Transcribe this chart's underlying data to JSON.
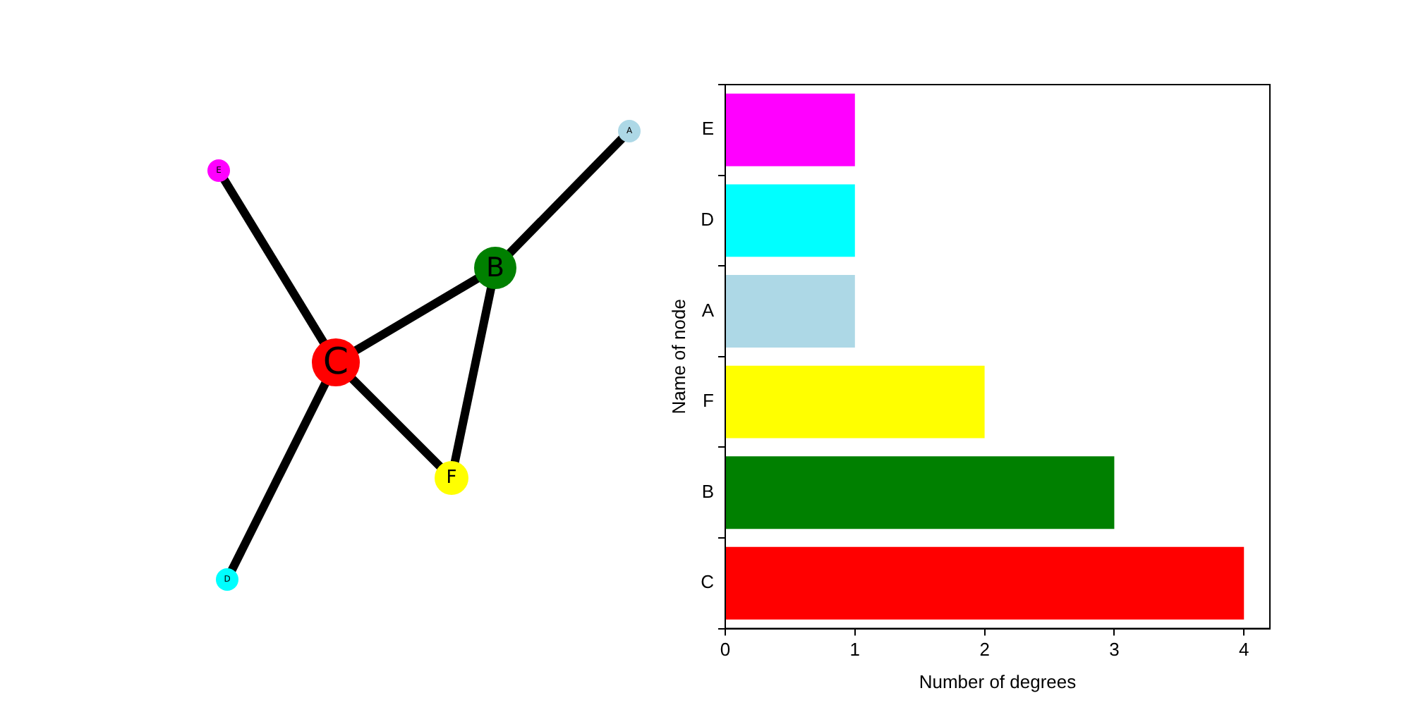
{
  "chart_data": {
    "type": "bar",
    "orientation": "horizontal",
    "categories": [
      "E",
      "D",
      "A",
      "F",
      "B",
      "C"
    ],
    "values": [
      1,
      1,
      1,
      2,
      3,
      4
    ],
    "colors": [
      "#ff00ff",
      "#00ffff",
      "#add8e6",
      "#ffff00",
      "#008000",
      "#ff0000"
    ],
    "xlim": [
      0,
      4.2
    ],
    "xticks": [
      0,
      1,
      2,
      3,
      4
    ],
    "xlabel": "Number of degrees",
    "ylabel": "Name of node",
    "grid": false,
    "legend": false
  }
}
